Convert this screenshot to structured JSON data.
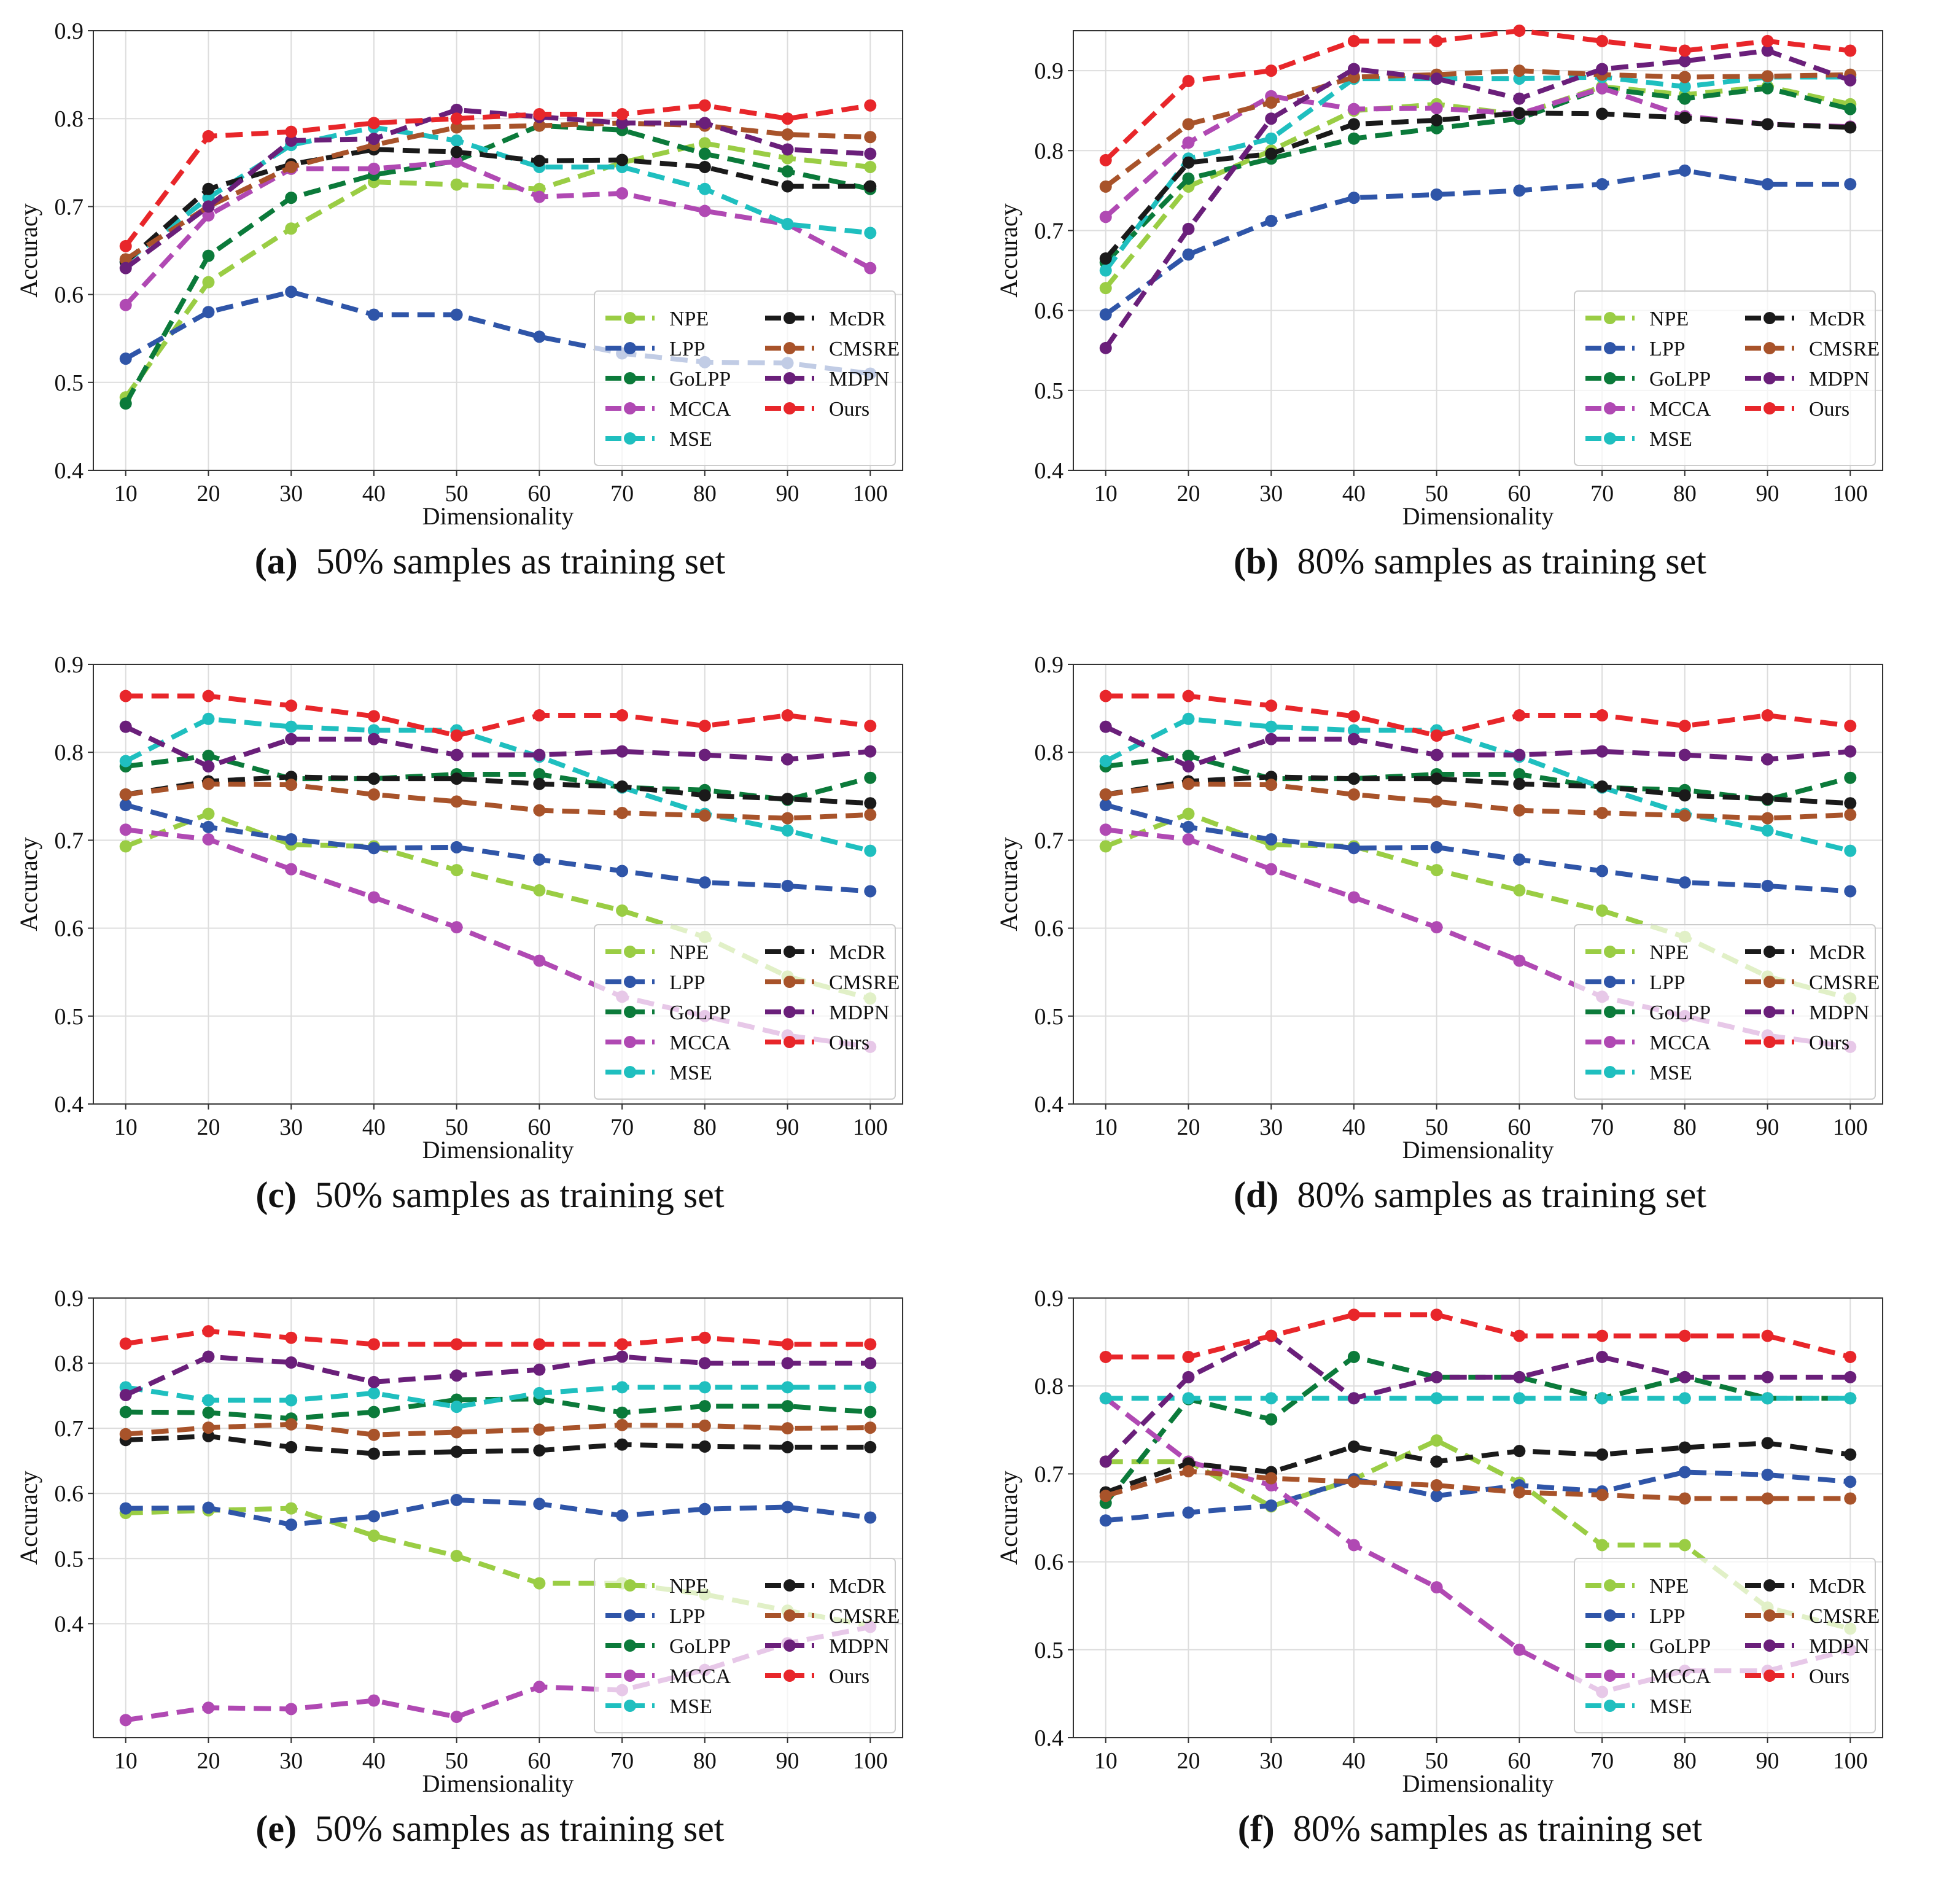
{
  "styles": {
    "NPE": {
      "color": "#9acd44",
      "dash": true
    },
    "LPP": {
      "color": "#2f55a8",
      "dash": true
    },
    "GoLPP": {
      "color": "#0b7a3a",
      "dash": true
    },
    "MCCA": {
      "color": "#b049b3",
      "dash": true
    },
    "MSE": {
      "color": "#1fbfbf",
      "dash": true
    },
    "McDR": {
      "color": "#1a1a1a",
      "dash": true
    },
    "CMSRE": {
      "color": "#a8532a",
      "dash": true
    },
    "MDPN": {
      "color": "#6a1f7a",
      "dash": true
    },
    "Ours": {
      "color": "#e8262a",
      "dash": true
    }
  },
  "legend_left": [
    "NPE",
    "LPP",
    "GoLPP",
    "MCCA",
    "MSE"
  ],
  "legend_right": [
    "McDR",
    "CMSRE",
    "MDPN",
    "Ours"
  ],
  "chart_data": [
    {
      "id": "a",
      "type": "line",
      "caption_letter": "(a)",
      "caption_text": "50% samples as training set",
      "xlabel": "Dimensionality",
      "ylabel": "Accuracy",
      "x": [
        10,
        20,
        30,
        40,
        50,
        60,
        70,
        80,
        90,
        100
      ],
      "ylim": [
        0.4,
        0.9
      ],
      "yticks": [
        "0.4",
        "0.5",
        "0.6",
        "0.7",
        "0.8",
        "0.9"
      ],
      "series": [
        {
          "name": "NPE",
          "values": [
            0.483,
            0.614,
            0.675,
            0.728,
            0.725,
            0.72,
            0.75,
            0.772,
            0.755,
            0.745
          ]
        },
        {
          "name": "LPP",
          "values": [
            0.527,
            0.58,
            0.603,
            0.577,
            0.577,
            0.552,
            0.533,
            0.523,
            0.522,
            0.51
          ]
        },
        {
          "name": "GoLPP",
          "values": [
            0.476,
            0.644,
            0.71,
            0.736,
            0.752,
            0.792,
            0.787,
            0.76,
            0.74,
            0.72
          ]
        },
        {
          "name": "MCCA",
          "values": [
            0.588,
            0.69,
            0.743,
            0.743,
            0.751,
            0.711,
            0.715,
            0.695,
            0.68,
            0.63
          ]
        },
        {
          "name": "MSE",
          "values": [
            0.637,
            0.71,
            0.77,
            0.79,
            0.775,
            0.745,
            0.745,
            0.72,
            0.68,
            0.67
          ]
        },
        {
          "name": "McDR",
          "values": [
            0.637,
            0.72,
            0.748,
            0.765,
            0.762,
            0.752,
            0.753,
            0.745,
            0.723,
            0.723
          ]
        },
        {
          "name": "CMSRE",
          "values": [
            0.64,
            0.7,
            0.745,
            0.77,
            0.79,
            0.792,
            0.795,
            0.792,
            0.782,
            0.779
          ]
        },
        {
          "name": "MDPN",
          "values": [
            0.63,
            0.7,
            0.775,
            0.777,
            0.81,
            0.802,
            0.795,
            0.795,
            0.765,
            0.76
          ]
        },
        {
          "name": "Ours",
          "values": [
            0.655,
            0.78,
            0.785,
            0.795,
            0.8,
            0.805,
            0.805,
            0.815,
            0.8,
            0.815
          ]
        }
      ]
    },
    {
      "id": "b",
      "type": "line",
      "caption_letter": "(b)",
      "caption_text": "80% samples as training set",
      "xlabel": "Dimensionality",
      "ylabel": "Accuracy",
      "x": [
        10,
        20,
        30,
        40,
        50,
        60,
        70,
        80,
        90,
        100
      ],
      "ylim": [
        0.4,
        0.95
      ],
      "yticks": [
        "0.4",
        "0.5",
        "0.6",
        "0.7",
        "0.8",
        "0.9"
      ],
      "series": [
        {
          "name": "NPE",
          "values": [
            0.628,
            0.755,
            0.8,
            0.85,
            0.858,
            0.845,
            0.88,
            0.87,
            0.88,
            0.858
          ]
        },
        {
          "name": "LPP",
          "values": [
            0.595,
            0.67,
            0.712,
            0.741,
            0.745,
            0.75,
            0.758,
            0.775,
            0.758,
            0.758
          ]
        },
        {
          "name": "GoLPP",
          "values": [
            0.66,
            0.765,
            0.79,
            0.815,
            0.828,
            0.84,
            0.878,
            0.865,
            0.878,
            0.852
          ]
        },
        {
          "name": "MCCA",
          "values": [
            0.717,
            0.81,
            0.868,
            0.852,
            0.853,
            0.846,
            0.878,
            0.843,
            0.833,
            0.83
          ]
        },
        {
          "name": "MSE",
          "values": [
            0.65,
            0.79,
            0.815,
            0.89,
            0.89,
            0.89,
            0.892,
            0.88,
            0.892,
            0.892
          ]
        },
        {
          "name": "McDR",
          "values": [
            0.665,
            0.785,
            0.796,
            0.833,
            0.838,
            0.847,
            0.846,
            0.841,
            0.833,
            0.829
          ]
        },
        {
          "name": "CMSRE",
          "values": [
            0.755,
            0.833,
            0.86,
            0.892,
            0.895,
            0.9,
            0.895,
            0.892,
            0.893,
            0.895
          ]
        },
        {
          "name": "MDPN",
          "values": [
            0.553,
            0.702,
            0.84,
            0.902,
            0.89,
            0.865,
            0.902,
            0.912,
            0.925,
            0.888
          ]
        },
        {
          "name": "Ours",
          "values": [
            0.788,
            0.887,
            0.9,
            0.937,
            0.937,
            0.95,
            0.937,
            0.925,
            0.937,
            0.925
          ]
        }
      ]
    },
    {
      "id": "c",
      "type": "line",
      "caption_letter": "(c)",
      "caption_text": "50% samples as training set",
      "xlabel": "Dimensionality",
      "ylabel": "Accuracy",
      "x": [
        10,
        20,
        30,
        40,
        50,
        60,
        70,
        80,
        90,
        100
      ],
      "ylim": [
        0.4,
        0.9
      ],
      "yticks": [
        "0.4",
        "0.5",
        "0.6",
        "0.7",
        "0.8",
        "0.9"
      ],
      "series": [
        {
          "name": "NPE",
          "values": [
            0.693,
            0.73,
            0.695,
            0.693,
            0.666,
            0.643,
            0.62,
            0.59,
            0.545,
            0.52
          ]
        },
        {
          "name": "LPP",
          "values": [
            0.74,
            0.715,
            0.701,
            0.691,
            0.692,
            0.678,
            0.665,
            0.652,
            0.648,
            0.642
          ]
        },
        {
          "name": "GoLPP",
          "values": [
            0.784,
            0.796,
            0.77,
            0.77,
            0.775,
            0.775,
            0.76,
            0.757,
            0.746,
            0.771
          ]
        },
        {
          "name": "MCCA",
          "values": [
            0.712,
            0.701,
            0.667,
            0.635,
            0.601,
            0.563,
            0.522,
            0.5,
            0.478,
            0.465
          ]
        },
        {
          "name": "MSE",
          "values": [
            0.79,
            0.838,
            0.829,
            0.825,
            0.825,
            0.795,
            0.76,
            0.73,
            0.711,
            0.688
          ]
        },
        {
          "name": "McDR",
          "values": [
            0.752,
            0.767,
            0.772,
            0.77,
            0.77,
            0.764,
            0.761,
            0.751,
            0.747,
            0.742
          ]
        },
        {
          "name": "CMSRE",
          "values": [
            0.752,
            0.764,
            0.763,
            0.752,
            0.744,
            0.734,
            0.731,
            0.728,
            0.725,
            0.729
          ]
        },
        {
          "name": "MDPN",
          "values": [
            0.829,
            0.784,
            0.815,
            0.815,
            0.797,
            0.797,
            0.801,
            0.797,
            0.792,
            0.801
          ]
        },
        {
          "name": "Ours",
          "values": [
            0.864,
            0.864,
            0.853,
            0.841,
            0.819,
            0.842,
            0.842,
            0.83,
            0.842,
            0.83
          ]
        }
      ]
    },
    {
      "id": "d",
      "type": "line",
      "caption_letter": "(d)",
      "caption_text": "80% samples as training set",
      "xlabel": "Dimensionality",
      "ylabel": "Accuracy",
      "x": [
        10,
        20,
        30,
        40,
        50,
        60,
        70,
        80,
        90,
        100
      ],
      "ylim": [
        0.4,
        0.9
      ],
      "yticks": [
        "0.4",
        "0.5",
        "0.6",
        "0.7",
        "0.8",
        "0.9"
      ],
      "series": [
        {
          "name": "NPE",
          "values": [
            0.693,
            0.73,
            0.695,
            0.693,
            0.666,
            0.643,
            0.62,
            0.59,
            0.545,
            0.52
          ]
        },
        {
          "name": "LPP",
          "values": [
            0.74,
            0.715,
            0.701,
            0.691,
            0.692,
            0.678,
            0.665,
            0.652,
            0.648,
            0.642
          ]
        },
        {
          "name": "GoLPP",
          "values": [
            0.784,
            0.796,
            0.77,
            0.77,
            0.775,
            0.775,
            0.76,
            0.757,
            0.746,
            0.771
          ]
        },
        {
          "name": "MCCA",
          "values": [
            0.712,
            0.701,
            0.667,
            0.635,
            0.601,
            0.563,
            0.522,
            0.5,
            0.478,
            0.465
          ]
        },
        {
          "name": "MSE",
          "values": [
            0.79,
            0.838,
            0.829,
            0.825,
            0.825,
            0.795,
            0.76,
            0.73,
            0.711,
            0.688
          ]
        },
        {
          "name": "McDR",
          "values": [
            0.752,
            0.767,
            0.772,
            0.77,
            0.77,
            0.764,
            0.761,
            0.751,
            0.747,
            0.742
          ]
        },
        {
          "name": "CMSRE",
          "values": [
            0.752,
            0.764,
            0.763,
            0.752,
            0.744,
            0.734,
            0.731,
            0.728,
            0.725,
            0.729
          ]
        },
        {
          "name": "MDPN",
          "values": [
            0.829,
            0.784,
            0.815,
            0.815,
            0.797,
            0.797,
            0.801,
            0.797,
            0.792,
            0.801
          ]
        },
        {
          "name": "Ours",
          "values": [
            0.864,
            0.864,
            0.853,
            0.841,
            0.819,
            0.842,
            0.842,
            0.83,
            0.842,
            0.83
          ]
        }
      ]
    },
    {
      "id": "e",
      "type": "line",
      "caption_letter": "(e)",
      "caption_text": "50% samples as training set",
      "xlabel": "Dimensionality",
      "ylabel": "Accuracy",
      "x": [
        10,
        20,
        30,
        40,
        50,
        60,
        70,
        80,
        90,
        100
      ],
      "ylim": [
        0.225,
        0.9
      ],
      "yticks": [
        "0.4",
        "0.5",
        "0.6",
        "0.7",
        "0.8",
        "0.9"
      ],
      "series": [
        {
          "name": "NPE",
          "values": [
            0.57,
            0.574,
            0.577,
            0.535,
            0.504,
            0.462,
            0.462,
            0.445,
            0.42,
            0.397
          ]
        },
        {
          "name": "LPP",
          "values": [
            0.577,
            0.578,
            0.552,
            0.565,
            0.59,
            0.584,
            0.566,
            0.576,
            0.579,
            0.563
          ]
        },
        {
          "name": "GoLPP",
          "values": [
            0.725,
            0.724,
            0.715,
            0.725,
            0.744,
            0.745,
            0.724,
            0.734,
            0.734,
            0.725
          ]
        },
        {
          "name": "MCCA",
          "values": [
            0.252,
            0.271,
            0.269,
            0.282,
            0.257,
            0.303,
            0.298,
            0.329,
            0.37,
            0.395
          ]
        },
        {
          "name": "MSE",
          "values": [
            0.763,
            0.743,
            0.743,
            0.754,
            0.733,
            0.754,
            0.763,
            0.763,
            0.763,
            0.763
          ]
        },
        {
          "name": "McDR",
          "values": [
            0.682,
            0.688,
            0.671,
            0.661,
            0.664,
            0.666,
            0.675,
            0.672,
            0.671,
            0.671
          ]
        },
        {
          "name": "CMSRE",
          "values": [
            0.691,
            0.701,
            0.706,
            0.69,
            0.694,
            0.698,
            0.705,
            0.704,
            0.7,
            0.701
          ]
        },
        {
          "name": "MDPN",
          "values": [
            0.751,
            0.81,
            0.801,
            0.771,
            0.781,
            0.79,
            0.81,
            0.8,
            0.8,
            0.8
          ]
        },
        {
          "name": "Ours",
          "values": [
            0.83,
            0.849,
            0.839,
            0.829,
            0.829,
            0.829,
            0.829,
            0.839,
            0.829,
            0.829
          ]
        }
      ]
    },
    {
      "id": "f",
      "type": "line",
      "caption_letter": "(f)",
      "caption_text": "80% samples as training set",
      "xlabel": "Dimensionality",
      "ylabel": "Accuracy",
      "x": [
        10,
        20,
        30,
        40,
        50,
        60,
        70,
        80,
        90,
        100
      ],
      "ylim": [
        0.4,
        0.9
      ],
      "yticks": [
        "0.4",
        "0.5",
        "0.6",
        "0.7",
        "0.8",
        "0.9"
      ],
      "series": [
        {
          "name": "NPE",
          "values": [
            0.714,
            0.714,
            0.663,
            0.694,
            0.738,
            0.69,
            0.619,
            0.619,
            0.548,
            0.524
          ]
        },
        {
          "name": "LPP",
          "values": [
            0.647,
            0.656,
            0.664,
            0.694,
            0.675,
            0.687,
            0.68,
            0.702,
            0.699,
            0.691
          ]
        },
        {
          "name": "GoLPP",
          "values": [
            0.667,
            0.785,
            0.762,
            0.833,
            0.81,
            0.81,
            0.786,
            0.81,
            0.786,
            0.786
          ]
        },
        {
          "name": "MCCA",
          "values": [
            0.786,
            0.714,
            0.687,
            0.619,
            0.571,
            0.5,
            0.452,
            0.476,
            0.476,
            0.5
          ]
        },
        {
          "name": "MSE",
          "values": [
            0.786,
            0.786,
            0.786,
            0.786,
            0.786,
            0.786,
            0.786,
            0.786,
            0.786,
            0.786
          ]
        },
        {
          "name": "McDR",
          "values": [
            0.679,
            0.712,
            0.702,
            0.731,
            0.714,
            0.726,
            0.722,
            0.73,
            0.735,
            0.722
          ]
        },
        {
          "name": "CMSRE",
          "values": [
            0.675,
            0.703,
            0.695,
            0.691,
            0.687,
            0.679,
            0.676,
            0.672,
            0.672,
            0.672
          ]
        },
        {
          "name": "MDPN",
          "values": [
            0.714,
            0.81,
            0.857,
            0.786,
            0.81,
            0.81,
            0.833,
            0.81,
            0.81,
            0.81
          ]
        },
        {
          "name": "Ours",
          "values": [
            0.833,
            0.833,
            0.857,
            0.881,
            0.881,
            0.857,
            0.857,
            0.857,
            0.857,
            0.833
          ]
        }
      ]
    }
  ]
}
